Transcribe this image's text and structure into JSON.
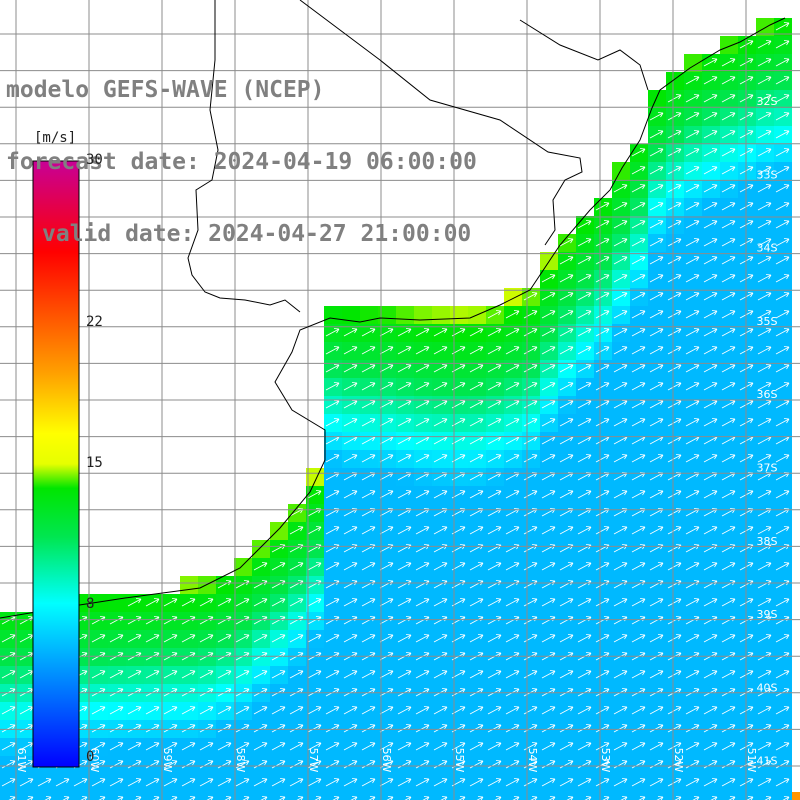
{
  "title": {
    "model": "modelo GEFS-WAVE (NCEP)",
    "forecast_date": "forecast date: 2024-04-19 06:00:00",
    "valid_date": "valid date: 2024-04-27 21:00:00"
  },
  "colorbar": {
    "unit": "[m/s]",
    "min": 0,
    "max": 30,
    "ticks": [
      {
        "value": 30,
        "label": "30"
      },
      {
        "value": 22,
        "label": "22"
      },
      {
        "value": 15,
        "label": "15"
      },
      {
        "value": 8,
        "label": "8"
      },
      {
        "value": 0,
        "label": "0"
      }
    ],
    "colors": [
      "#0000ff",
      "#00b4ff",
      "#00ffff",
      "#00e650",
      "#00e600",
      "#c8f000",
      "#ffff00",
      "#ffa500",
      "#ff5000",
      "#ff0000",
      "#c80096"
    ]
  },
  "map": {
    "lat_labels": [
      "32S",
      "33S",
      "34S",
      "35S",
      "36S",
      "37S",
      "38S",
      "39S",
      "40S",
      "41S"
    ],
    "lon_labels": [
      "61W",
      "60W",
      "59W",
      "58W",
      "57W",
      "56W",
      "55W",
      "54W",
      "53W",
      "52W",
      "51W"
    ],
    "field": "wind speed with direction arrows (flow toward NE)",
    "land_color": "#ffffff",
    "grid_color": "#8c8c8c",
    "coast_color": "#000000"
  }
}
